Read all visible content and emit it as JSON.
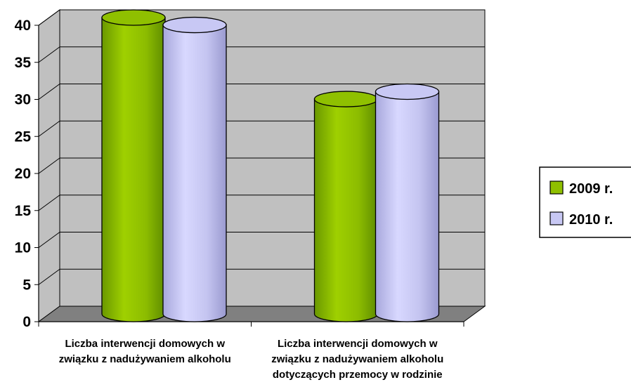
{
  "chart_data": {
    "type": "bar",
    "categories": [
      [
        "Liczba interwencji domowych w",
        "związku z nadużywaniem alkoholu"
      ],
      [
        "Liczba interwencji domowych w",
        "związku z nadużywaniem alkoholu",
        "dotyczących przemocy w rodzinie"
      ]
    ],
    "series": [
      {
        "name": "2009 r.",
        "values": [
          40,
          29
        ],
        "color": "#8fc000"
      },
      {
        "name": "2010 r.",
        "values": [
          39,
          30
        ],
        "color": "#c8c8f4"
      }
    ],
    "ylim": [
      0,
      40
    ],
    "yticks": [
      "0",
      "5",
      "10",
      "15",
      "20",
      "25",
      "30",
      "35",
      "40"
    ],
    "grid": true,
    "legend": "right",
    "colors": {
      "wall": "#c0c0c0",
      "floor": "#808080"
    }
  }
}
